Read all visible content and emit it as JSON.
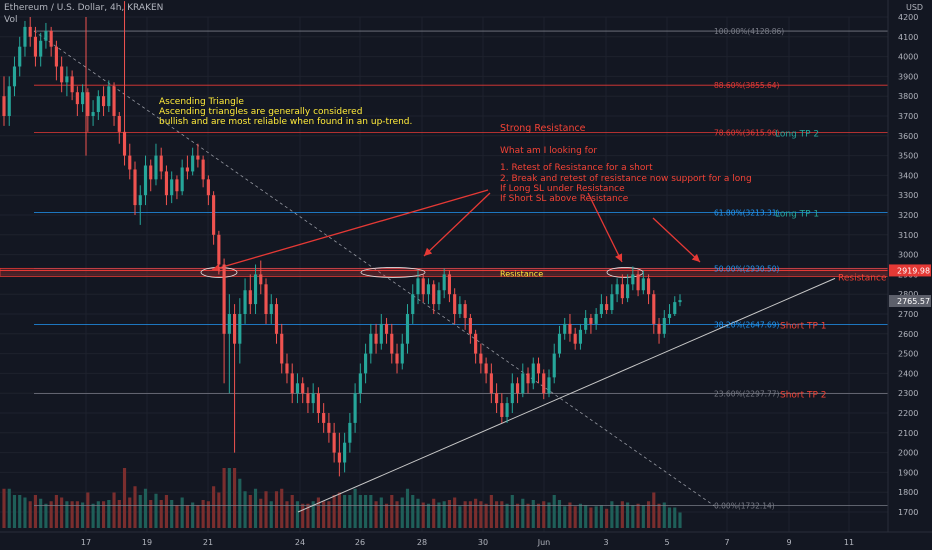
{
  "header": {
    "title": "Ethereum / U.S. Dollar, 4h, KRAKEN",
    "vol_label": "Vol"
  },
  "axis": {
    "currency": "USD"
  },
  "colors": {
    "bg": "#131722",
    "up": "#26a69a",
    "down": "#ef5350",
    "up_vol": "#1f5f59",
    "down_vol": "#7a2e2e",
    "grid": "#1e222d",
    "fib_gray": "#787b86",
    "fib_red": "#e53935",
    "fib_blue": "#2196f3",
    "annotation_red": "#f44336",
    "annotation_yellow": "#ffeb3b",
    "arrow": "#e53935",
    "trend": "#c8c8c8"
  },
  "chart_data": {
    "type": "candlestick",
    "title": "Ethereum / U.S. Dollar, 4h, KRAKEN",
    "ylim": [
      1700,
      4200
    ],
    "y_ticks": [
      1700,
      1800,
      1900,
      2000,
      2100,
      2200,
      2300,
      2400,
      2500,
      2600,
      2700,
      2800,
      2900,
      3000,
      3100,
      3200,
      3300,
      3400,
      3500,
      3600,
      3700,
      3800,
      3900,
      4000,
      4100,
      4200
    ],
    "x_ticks": [
      "17",
      "19",
      "21",
      "24",
      "26",
      "28",
      "30",
      "Jun",
      "3",
      "5",
      "7",
      "9",
      "11"
    ],
    "fib_levels": [
      {
        "label": "100.00%(4128.86)",
        "value": 4128.86,
        "color": "gray"
      },
      {
        "label": "88.60%(3855.64)",
        "value": 3855.64,
        "color": "red"
      },
      {
        "label": "78.60%(3615.96)",
        "value": 3615.96,
        "color": "red"
      },
      {
        "label": "61.80%(3213.31)",
        "value": 3213.31,
        "color": "blue"
      },
      {
        "label": "50.00%(2930.50)",
        "value": 2930.5,
        "color": "blue"
      },
      {
        "label": "38.20%(2647.69)",
        "value": 2647.69,
        "color": "blue"
      },
      {
        "label": "23.60%(2297.77)",
        "value": 2297.77,
        "color": "gray"
      },
      {
        "label": "0.00%(1732.14)",
        "value": 1732.14,
        "color": "gray"
      }
    ],
    "price_tags": [
      {
        "label": "2919.98",
        "value": 2919.98,
        "color": "red"
      },
      {
        "label": "2765.57",
        "value": 2765.57,
        "color": "gray"
      }
    ],
    "annotations": {
      "ascending_title": "Ascending Triangle",
      "ascending_line1": "Ascending triangles are generally considered",
      "ascending_line2": "bullish and are most reliable when found in an up-trend.",
      "strong_resistance": "Strong Resistance",
      "looking_for": "What am I looking for",
      "point1": "1. Retest of Resistance for a short",
      "point2": "2. Break and retest of resistance now support for a long",
      "point3": "If Long SL under Resistance",
      "point4": "If Short SL above Resistance",
      "long_tp2": "Long TP 2",
      "long_tp1": "Long TP 1",
      "short_tp1": "Short TP 1",
      "short_tp2": "Short TP 2",
      "resistance_box": "Resistance",
      "resistance_right": "Resistance"
    },
    "candles": [
      [
        3800,
        3700,
        3900,
        3650
      ],
      [
        3700,
        3850,
        3900,
        3650
      ],
      [
        3850,
        3950,
        4000,
        3800
      ],
      [
        3950,
        4050,
        4100,
        3900
      ],
      [
        4050,
        4150,
        4180,
        4000
      ],
      [
        4150,
        4100,
        4200,
        4050
      ],
      [
        4100,
        4000,
        4150,
        3950
      ],
      [
        4000,
        4080,
        4120,
        3950
      ],
      [
        4080,
        4130,
        4170,
        4040
      ],
      [
        4130,
        4050,
        4150,
        4000
      ],
      [
        4050,
        3950,
        4080,
        3880
      ],
      [
        3950,
        3870,
        4000,
        3820
      ],
      [
        3870,
        3900,
        3950,
        3800
      ],
      [
        3900,
        3820,
        3930,
        3780
      ],
      [
        3820,
        3760,
        3850,
        3700
      ],
      [
        3760,
        3820,
        3860,
        3720
      ],
      [
        3820,
        3700,
        3840,
        3620
      ],
      [
        3700,
        3720,
        3780,
        3650
      ],
      [
        3720,
        3800,
        3830,
        3680
      ],
      [
        3800,
        3750,
        3850,
        3700
      ],
      [
        3750,
        3850,
        3880,
        3720
      ],
      [
        3850,
        3700,
        3870,
        3650
      ],
      [
        3700,
        3620,
        3720,
        3560
      ],
      [
        3620,
        3500,
        4280,
        3450
      ],
      [
        3500,
        3430,
        3560,
        3380
      ],
      [
        3430,
        3250,
        3470,
        3200
      ],
      [
        3250,
        3300,
        3350,
        3150
      ],
      [
        3300,
        3450,
        3500,
        3250
      ],
      [
        3450,
        3380,
        3480,
        3320
      ],
      [
        3380,
        3500,
        3560,
        3350
      ],
      [
        3500,
        3420,
        3540,
        3380
      ],
      [
        3420,
        3300,
        3450,
        3250
      ],
      [
        3300,
        3380,
        3420,
        3260
      ],
      [
        3380,
        3320,
        3400,
        3280
      ],
      [
        3320,
        3440,
        3480,
        3300
      ],
      [
        3440,
        3420,
        3500,
        3380
      ],
      [
        3420,
        3500,
        3540,
        3400
      ],
      [
        3500,
        3480,
        3560,
        3440
      ],
      [
        3480,
        3380,
        3500,
        3340
      ],
      [
        3380,
        3300,
        3400,
        3250
      ],
      [
        3300,
        3100,
        3320,
        3050
      ],
      [
        3100,
        2950,
        3120,
        2900
      ],
      [
        2950,
        2600,
        2980,
        2350
      ],
      [
        2600,
        2700,
        2800,
        2300
      ],
      [
        2700,
        2550,
        2750,
        2000
      ],
      [
        2550,
        2700,
        2780,
        2450
      ],
      [
        2700,
        2820,
        2880,
        2650
      ],
      [
        2820,
        2750,
        2900,
        2700
      ],
      [
        2750,
        2900,
        2950,
        2700
      ],
      [
        2900,
        2850,
        2970,
        2800
      ],
      [
        2850,
        2700,
        2880,
        2650
      ],
      [
        2700,
        2750,
        2800,
        2650
      ],
      [
        2750,
        2600,
        2780,
        2550
      ],
      [
        2600,
        2450,
        2650,
        2400
      ],
      [
        2450,
        2400,
        2500,
        2350
      ],
      [
        2400,
        2300,
        2450,
        2250
      ],
      [
        2300,
        2350,
        2400,
        2250
      ],
      [
        2350,
        2300,
        2380,
        2250
      ],
      [
        2300,
        2250,
        2330,
        2200
      ],
      [
        2250,
        2300,
        2350,
        2200
      ],
      [
        2300,
        2200,
        2330,
        2150
      ],
      [
        2200,
        2150,
        2250,
        2100
      ],
      [
        2150,
        2100,
        2200,
        2050
      ],
      [
        2100,
        2000,
        2150,
        1950
      ],
      [
        2000,
        1950,
        2100,
        1880
      ],
      [
        1950,
        2050,
        2100,
        1900
      ],
      [
        2050,
        2150,
        2200,
        2000
      ],
      [
        2150,
        2300,
        2350,
        2100
      ],
      [
        2300,
        2400,
        2450,
        2250
      ],
      [
        2400,
        2500,
        2550,
        2350
      ],
      [
        2500,
        2600,
        2650,
        2450
      ],
      [
        2600,
        2550,
        2650,
        2500
      ],
      [
        2550,
        2650,
        2700,
        2520
      ],
      [
        2650,
        2600,
        2680,
        2550
      ],
      [
        2600,
        2500,
        2650,
        2450
      ],
      [
        2500,
        2450,
        2550,
        2400
      ],
      [
        2450,
        2550,
        2600,
        2420
      ],
      [
        2550,
        2700,
        2750,
        2500
      ],
      [
        2700,
        2800,
        2850,
        2650
      ],
      [
        2800,
        2880,
        2920,
        2750
      ],
      [
        2880,
        2800,
        2900,
        2760
      ],
      [
        2800,
        2850,
        2880,
        2750
      ],
      [
        2850,
        2750,
        2870,
        2700
      ],
      [
        2750,
        2820,
        2860,
        2720
      ],
      [
        2820,
        2900,
        2930,
        2780
      ],
      [
        2900,
        2800,
        2920,
        2760
      ],
      [
        2800,
        2700,
        2830,
        2650
      ],
      [
        2700,
        2750,
        2790,
        2680
      ],
      [
        2750,
        2680,
        2770,
        2620
      ],
      [
        2680,
        2600,
        2700,
        2550
      ],
      [
        2600,
        2500,
        2620,
        2450
      ],
      [
        2500,
        2450,
        2550,
        2400
      ],
      [
        2450,
        2400,
        2480,
        2350
      ],
      [
        2400,
        2300,
        2450,
        2250
      ],
      [
        2300,
        2250,
        2350,
        2200
      ],
      [
        2250,
        2180,
        2300,
        2150
      ],
      [
        2180,
        2250,
        2280,
        2150
      ],
      [
        2250,
        2350,
        2400,
        2200
      ],
      [
        2350,
        2300,
        2380,
        2250
      ],
      [
        2300,
        2400,
        2450,
        2280
      ],
      [
        2400,
        2350,
        2430,
        2300
      ],
      [
        2350,
        2450,
        2480,
        2320
      ],
      [
        2450,
        2400,
        2480,
        2350
      ],
      [
        2400,
        2300,
        2420,
        2270
      ],
      [
        2300,
        2380,
        2420,
        2280
      ],
      [
        2380,
        2500,
        2550,
        2350
      ],
      [
        2500,
        2600,
        2640,
        2480
      ],
      [
        2600,
        2650,
        2680,
        2570
      ],
      [
        2650,
        2600,
        2700,
        2560
      ],
      [
        2600,
        2550,
        2630,
        2520
      ],
      [
        2550,
        2620,
        2650,
        2520
      ],
      [
        2620,
        2680,
        2720,
        2600
      ],
      [
        2680,
        2650,
        2700,
        2600
      ],
      [
        2650,
        2700,
        2730,
        2620
      ],
      [
        2700,
        2750,
        2800,
        2680
      ],
      [
        2750,
        2720,
        2790,
        2700
      ],
      [
        2720,
        2800,
        2850,
        2700
      ],
      [
        2800,
        2850,
        2880,
        2760
      ],
      [
        2850,
        2780,
        2900,
        2750
      ],
      [
        2780,
        2850,
        2900,
        2760
      ],
      [
        2850,
        2900,
        2940,
        2820
      ],
      [
        2900,
        2820,
        2920,
        2790
      ],
      [
        2820,
        2880,
        2920,
        2800
      ],
      [
        2880,
        2800,
        2900,
        2750
      ],
      [
        2800,
        2650,
        2820,
        2600
      ],
      [
        2650,
        2600,
        2680,
        2550
      ],
      [
        2600,
        2680,
        2720,
        2580
      ],
      [
        2680,
        2700,
        2750,
        2650
      ],
      [
        2700,
        2760,
        2790,
        2690
      ],
      [
        2760,
        2770,
        2800,
        2740
      ]
    ]
  }
}
